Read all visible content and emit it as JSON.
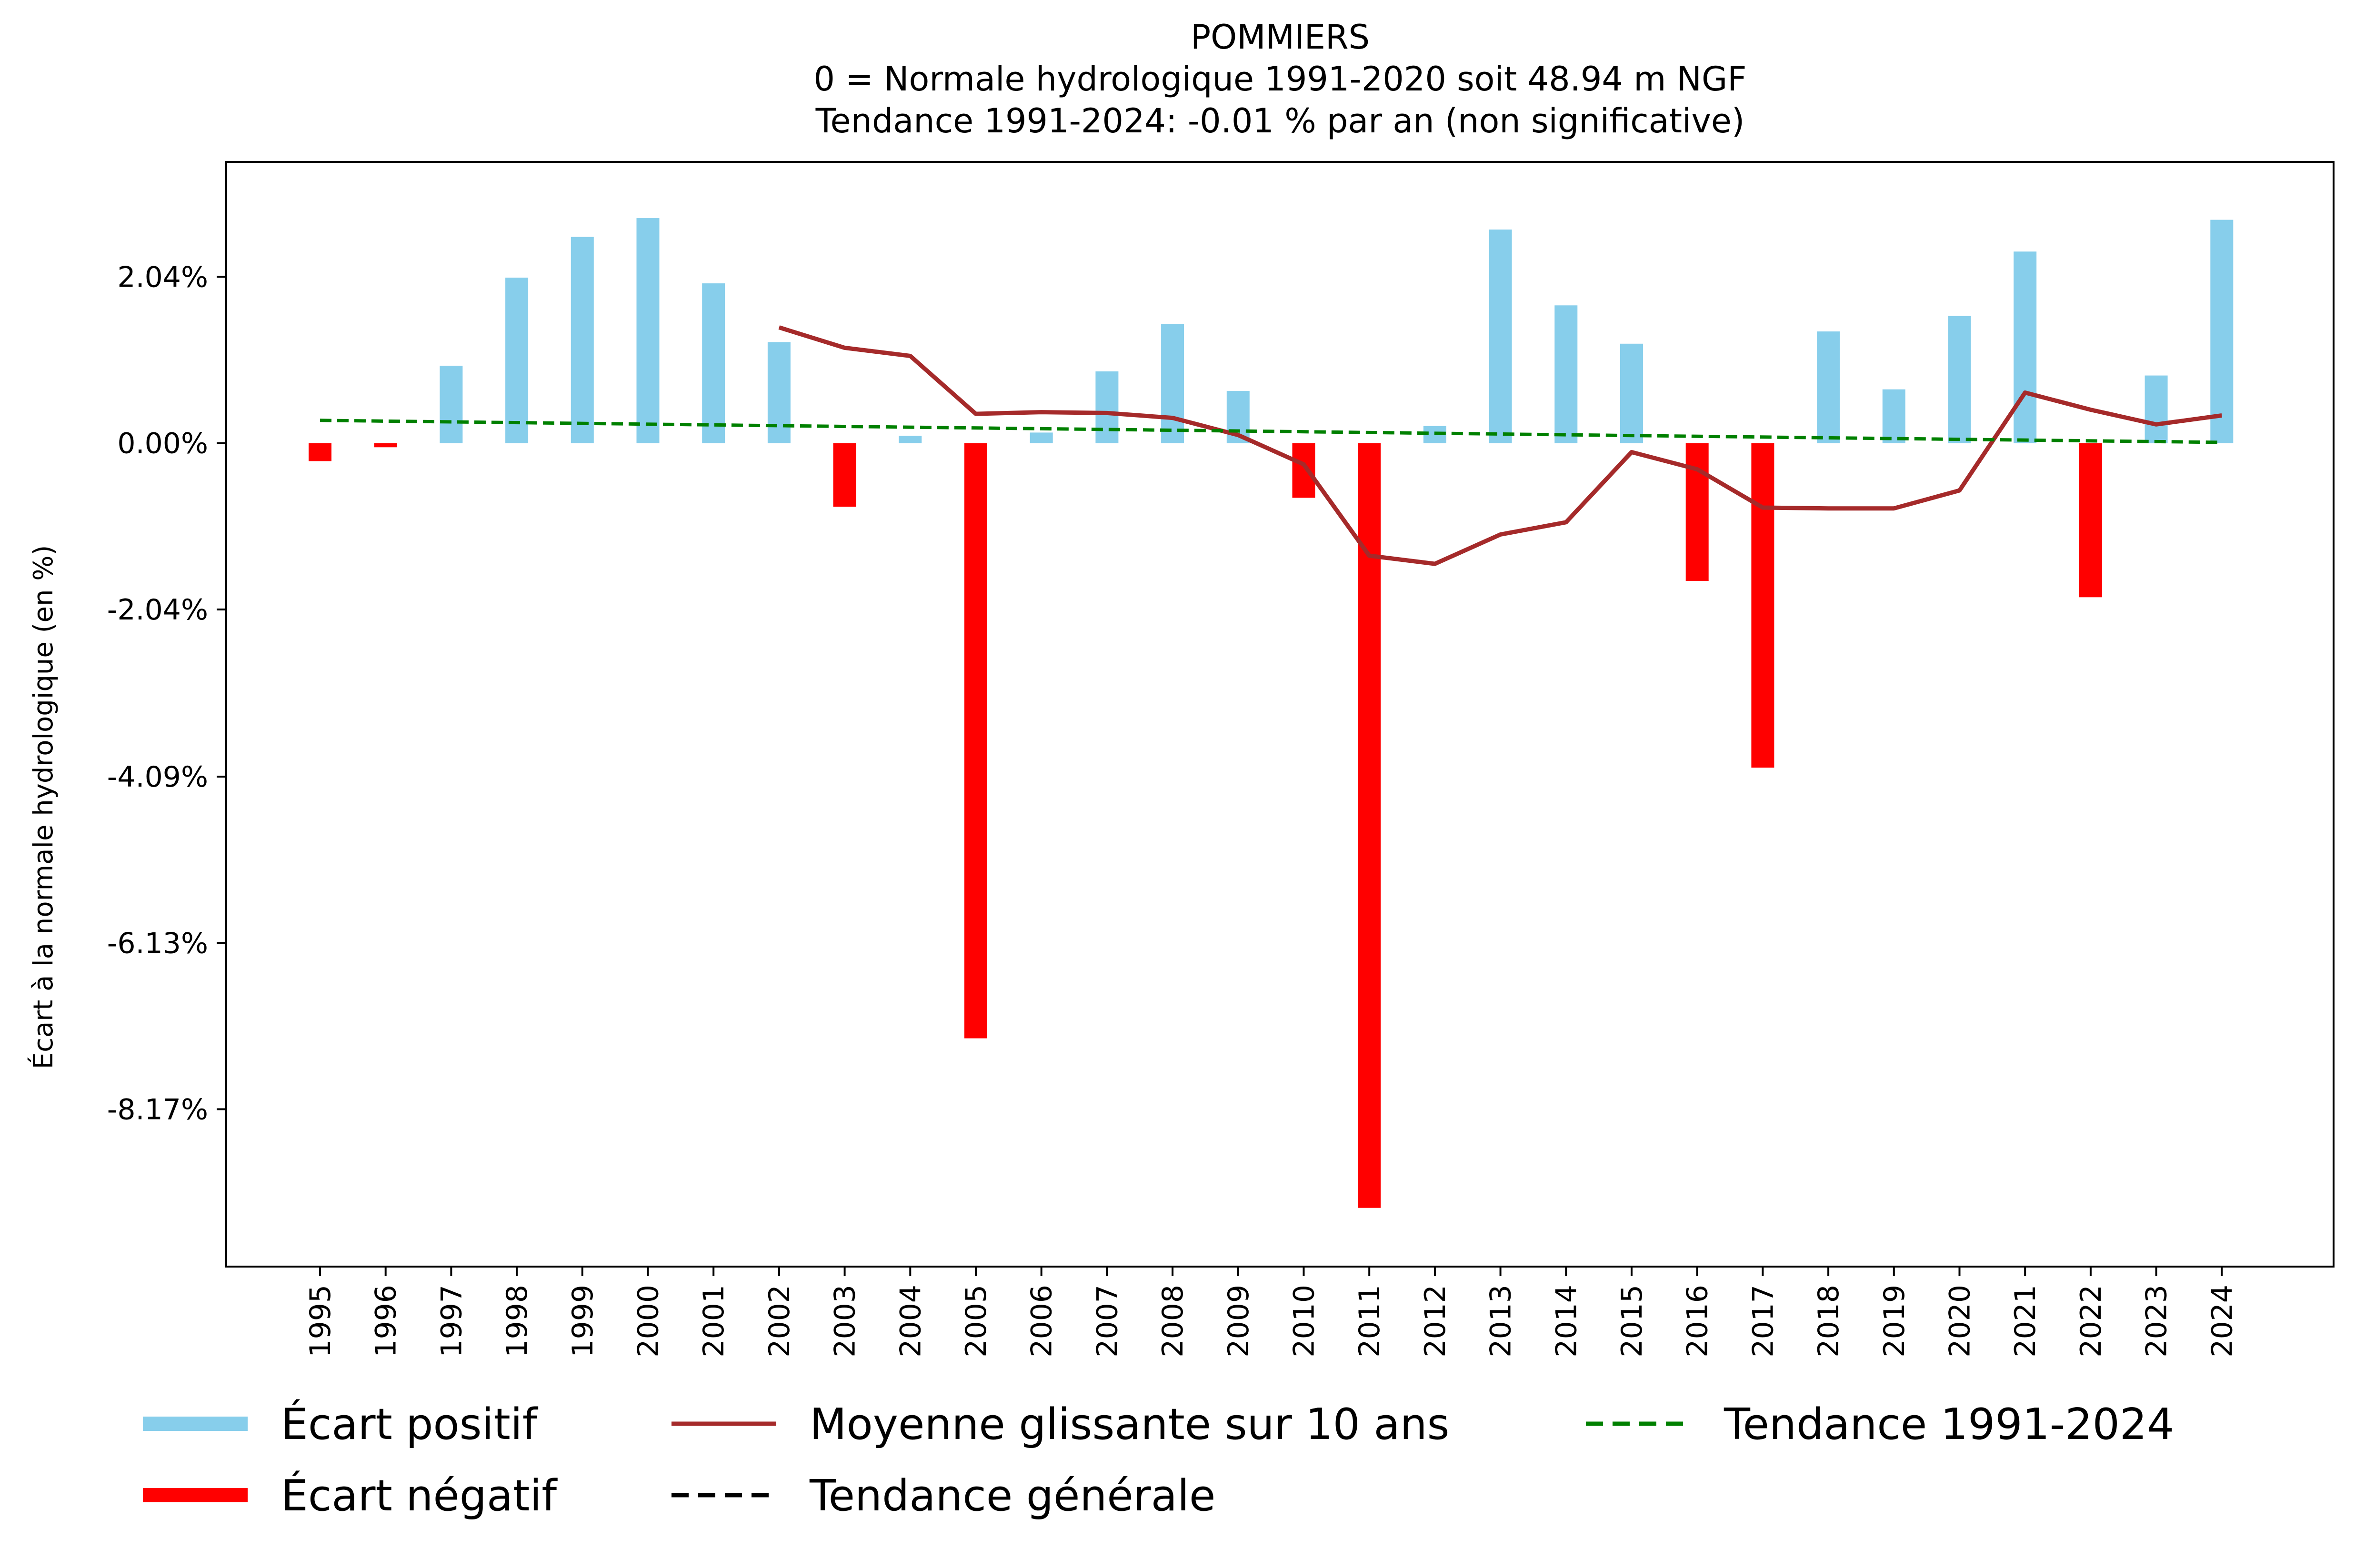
{
  "chart_data": {
    "type": "bar",
    "title_lines": [
      "POMMIERS",
      "0 = Normale hydrologique 1991-2020 soit 48.94 m NGF",
      "Tendance 1991-2024: -0.01 % par an (non significative)"
    ],
    "xlabel": "",
    "ylabel": "Écart à la normale hydrologique (en %)",
    "ylim": [
      -10.1,
      3.45
    ],
    "yticks": [
      2.04,
      0.0,
      -2.04,
      -4.09,
      -6.13,
      -8.17
    ],
    "ytick_labels": [
      "2.04%",
      "0.00%",
      "-2.04%",
      "-4.09%",
      "-6.13%",
      "-8.17%"
    ],
    "categories": [
      "1995",
      "1996",
      "1997",
      "1998",
      "1999",
      "2000",
      "2001",
      "2002",
      "2003",
      "2004",
      "2005",
      "2006",
      "2007",
      "2008",
      "2009",
      "2010",
      "2011",
      "2012",
      "2013",
      "2014",
      "2015",
      "2016",
      "2017",
      "2018",
      "2019",
      "2020",
      "2021",
      "2022",
      "2023",
      "2024"
    ],
    "values": [
      -0.22,
      -0.05,
      0.95,
      2.03,
      2.53,
      2.76,
      1.96,
      1.24,
      -0.78,
      0.09,
      -7.3,
      0.13,
      0.88,
      1.46,
      0.64,
      -0.67,
      -9.38,
      0.21,
      2.62,
      1.69,
      1.22,
      -1.69,
      -3.98,
      1.37,
      0.66,
      1.56,
      2.35,
      -1.89,
      0.83,
      2.74
    ],
    "series": [
      {
        "name": "Moyenne glissante sur 10 ans",
        "color": "#a52a2a",
        "style": "solid",
        "x": [
          "2002",
          "2003",
          "2004",
          "2005",
          "2006",
          "2007",
          "2008",
          "2009",
          "2010",
          "2011",
          "2012",
          "2013",
          "2014",
          "2015",
          "2016",
          "2017",
          "2018",
          "2019",
          "2020",
          "2021",
          "2022",
          "2023",
          "2024"
        ],
        "values": [
          1.42,
          1.17,
          1.07,
          0.36,
          0.38,
          0.37,
          0.31,
          0.1,
          -0.26,
          -1.38,
          -1.48,
          -1.12,
          -0.97,
          -0.11,
          -0.32,
          -0.79,
          -0.8,
          -0.8,
          -0.58,
          0.62,
          0.41,
          0.23,
          0.34
        ]
      },
      {
        "name": "Tendance 1991-2024",
        "color": "#008000",
        "style": "dashed",
        "x": [
          "1995",
          "2024"
        ],
        "values": [
          0.28,
          0.01
        ]
      }
    ],
    "legend": [
      {
        "label": "Écart positif",
        "type": "bar",
        "color": "#87ceeb"
      },
      {
        "label": "Écart négatif",
        "type": "bar",
        "color": "#ff0000"
      },
      {
        "label": "Moyenne glissante sur 10 ans",
        "type": "line",
        "color": "#a52a2a"
      },
      {
        "label": "Tendance générale",
        "type": "dashed",
        "color": "#000000"
      },
      {
        "label": "Tendance 1991-2024",
        "type": "dashed",
        "color": "#008000"
      }
    ],
    "legend_position": "bottom",
    "colors": {
      "positive": "#87ceeb",
      "negative": "#ff0000",
      "rolling": "#a52a2a",
      "trend": "#008000",
      "general_trend": "#000000"
    }
  }
}
